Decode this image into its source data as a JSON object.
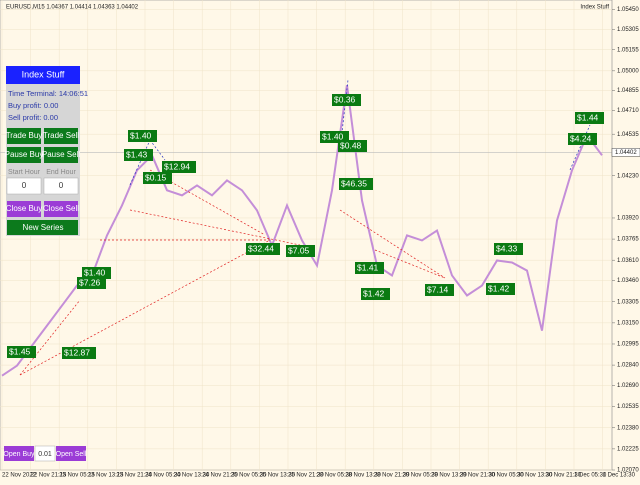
{
  "header": {
    "symbol_info": "EURUSD,M15  1.04367 1.04414 1.04363 1.04402",
    "indicator_name": "Index Stuff"
  },
  "chart": {
    "type": "line",
    "series": [
      {
        "color": "#c48ed8",
        "values": [
          1.02762,
          1.02836,
          1.02983,
          1.0313,
          1.03277,
          1.03424,
          1.03498,
          1.03792,
          1.04012,
          1.0427,
          1.0438,
          1.04123,
          1.04086,
          1.04159,
          1.04086,
          1.04196,
          1.04123,
          1.03976,
          1.03718,
          1.04012,
          1.03755,
          1.03571,
          1.04123,
          1.04895,
          1.04049,
          1.03571,
          1.03498,
          1.03792,
          1.03755,
          1.03828,
          1.03498,
          1.03351,
          1.03424,
          1.03608,
          1.03593,
          1.03534,
          1.03093,
          1.03902,
          1.0427,
          1.04527,
          1.0438
        ]
      }
    ],
    "ylim": [
      1.0207,
      1.0552
    ],
    "yticks": [
      {
        "value": 1.0545,
        "label": "1.05450"
      },
      {
        "value": 1.05305,
        "label": "1.05305"
      },
      {
        "value": 1.05155,
        "label": "1.05155"
      },
      {
        "value": 1.05,
        "label": "1.05000"
      },
      {
        "value": 1.04855,
        "label": "1.04855"
      },
      {
        "value": 1.0471,
        "label": "1.04710"
      },
      {
        "value": 1.04535,
        "label": "1.04535"
      },
      {
        "value": 1.0423,
        "label": "1.04230"
      },
      {
        "value": 1.0392,
        "label": "1.03920"
      },
      {
        "value": 1.03765,
        "label": "1.03765"
      },
      {
        "value": 1.0361,
        "label": "1.03610"
      },
      {
        "value": 1.0346,
        "label": "1.03460"
      },
      {
        "value": 1.03305,
        "label": "1.03305"
      },
      {
        "value": 1.0315,
        "label": "1.03150"
      },
      {
        "value": 1.02995,
        "label": "1.02995"
      },
      {
        "value": 1.0284,
        "label": "1.02840"
      },
      {
        "value": 1.0269,
        "label": "1.02690"
      },
      {
        "value": 1.02535,
        "label": "1.02535"
      },
      {
        "value": 1.0238,
        "label": "1.02380"
      },
      {
        "value": 1.02225,
        "label": "1.02225"
      },
      {
        "value": 1.0207,
        "label": "1.02070"
      }
    ],
    "current_price": {
      "value": 1.04402,
      "label": "1.04402"
    },
    "x_labels": [
      "22 Nov 2022",
      "22 Nov 21:15",
      "23 Nov 05:15",
      "23 Nov 13:15",
      "23 Nov 21:30",
      "24 Nov 05:30",
      "24 Nov 13:30",
      "24 Nov 21:30",
      "25 Nov 05:30",
      "25 Nov 13:30",
      "25 Nov 21:30",
      "28 Nov 05:30",
      "28 Nov 13:30",
      "28 Nov 21:30",
      "29 Nov 05:30",
      "29 Nov 13:30",
      "29 Nov 21:30",
      "30 Nov 05:30",
      "30 Nov 13:30",
      "30 Nov 21:30",
      "1 Dec 05:30",
      "1 Dec 13:30"
    ]
  },
  "trade_labels": [
    "$1.45",
    "$12.87",
    "$1.40",
    "$7.26",
    "$1.40",
    "$1.43",
    "$0.15",
    "$12.94",
    "$32.44",
    "$7.05",
    "$0.36",
    "$1.40",
    "$0.48",
    "$46.35",
    "$1.41",
    "$1.42",
    "$7.14",
    "$4.33",
    "$1.42",
    "$4.24",
    "$1.44"
  ],
  "panel": {
    "title": "Index Stuff",
    "time_terminal": "Time Terminal: 14:06:51",
    "buy_profit": "Buy profit: 0.00",
    "sell_profit": "Sell profit: 0.00",
    "trade_buy": "Trade Buy",
    "trade_sell": "Trade Sell",
    "pause_buy": "Pause Buy",
    "pause_sell": "Pause Sell",
    "start_hour_label": "Start Hour",
    "end_hour_label": "End Hour",
    "start_hour": "0",
    "end_hour": "0",
    "close_buy": "Close Buy",
    "close_sell": "Close Sell",
    "new_series": "New Series"
  },
  "bottom_bar": {
    "open_buy": "Open Buy",
    "lot": "0.01",
    "open_sell": "Open Sell"
  }
}
